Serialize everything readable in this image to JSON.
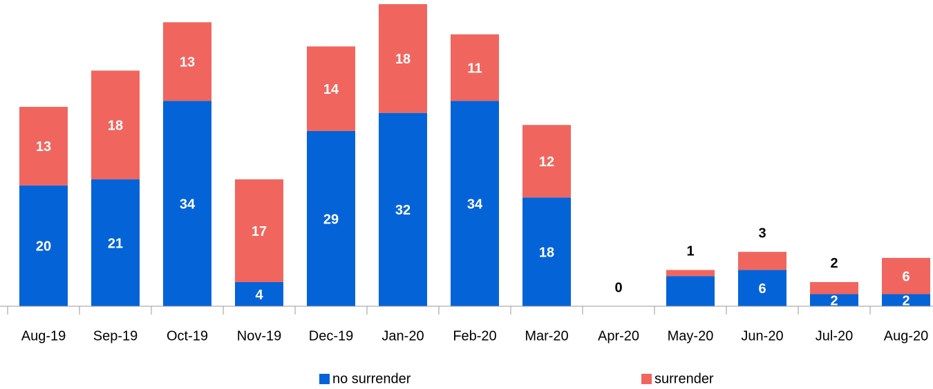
{
  "chart_data": {
    "type": "stacked_bar",
    "categories": [
      "Aug-19",
      "Sep-19",
      "Oct-19",
      "Nov-19",
      "Dec-19",
      "Jan-20",
      "Feb-20",
      "Mar-20",
      "Apr-20",
      "May-20",
      "Jun-20",
      "Jul-20",
      "Aug-20"
    ],
    "series": [
      {
        "name": "no surrender",
        "color": "#0563d8",
        "values": [
          20,
          21,
          34,
          4,
          29,
          32,
          34,
          18,
          0,
          5,
          6,
          2,
          2
        ],
        "value_labels": [
          "20",
          "21",
          "34",
          "4",
          "29",
          "32",
          "34",
          "18",
          null,
          null,
          "6",
          "2",
          "2"
        ]
      },
      {
        "name": "surrender",
        "color": "#f0665e",
        "values": [
          13,
          18,
          13,
          17,
          14,
          18,
          11,
          12,
          0,
          1,
          3,
          2,
          6
        ]
      }
    ],
    "ylim": [
      0,
      50
    ],
    "legend": "bottom"
  }
}
